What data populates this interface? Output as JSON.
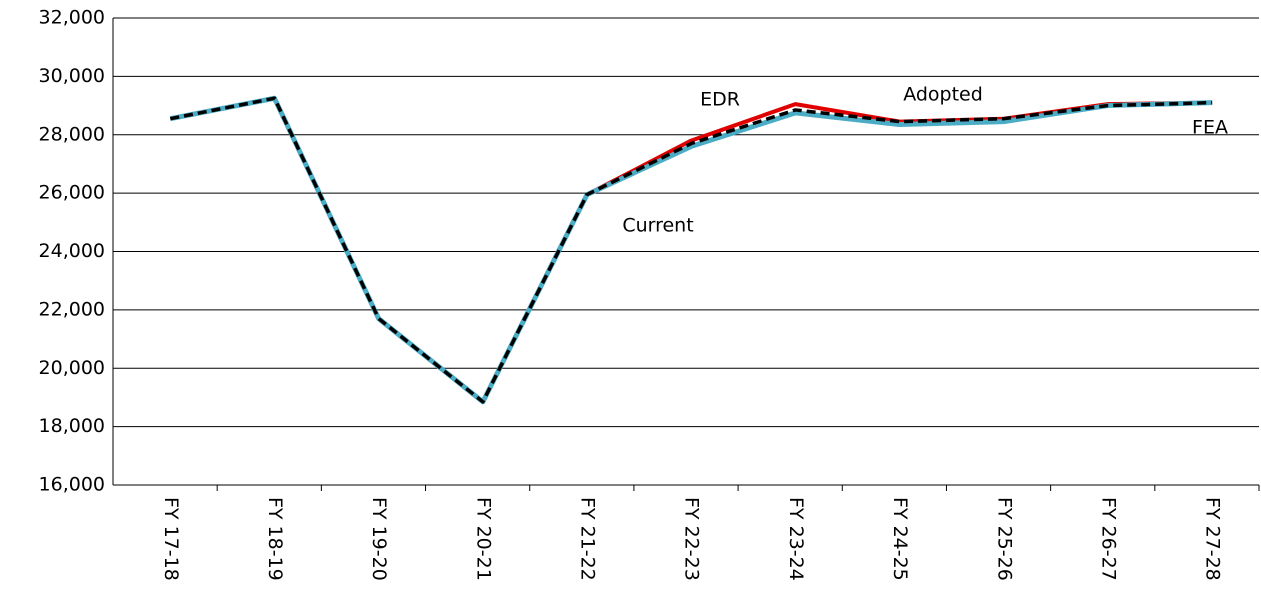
{
  "chart_data": {
    "type": "line",
    "categories": [
      "FY 17-18",
      "FY 18-19",
      "FY 19-20",
      "FY 20-21",
      "FY 21-22",
      "FY 22-23",
      "FY 23-24",
      "FY 24-25",
      "FY 25-26",
      "FY 26-27",
      "FY 27-28"
    ],
    "series": [
      {
        "name": "EDR",
        "color": "#e00000",
        "values": [
          null,
          null,
          null,
          null,
          25950,
          27800,
          29050,
          28450,
          28550,
          29050,
          29100
        ]
      },
      {
        "name": "FEA",
        "color": "#4bacc6",
        "values": [
          null,
          null,
          null,
          null,
          25950,
          27600,
          28750,
          28350,
          28450,
          29000,
          29100
        ]
      },
      {
        "name": "Current",
        "color": "#4bacc6",
        "values": [
          28550,
          29250,
          21700,
          18850,
          25950,
          null,
          null,
          null,
          null,
          null,
          null
        ]
      },
      {
        "name": "Adopted",
        "color": "#000000",
        "values": [
          28550,
          29250,
          21700,
          18850,
          25950,
          27700,
          28850,
          28450,
          28550,
          29000,
          29100
        ]
      }
    ],
    "ylim": [
      16000,
      32000
    ],
    "yticks": [
      {
        "value": 16000,
        "label": "16,000"
      },
      {
        "value": 18000,
        "label": "18,000"
      },
      {
        "value": 20000,
        "label": "20,000"
      },
      {
        "value": 22000,
        "label": "22,000"
      },
      {
        "value": 24000,
        "label": "24,000"
      },
      {
        "value": 26000,
        "label": "26,000"
      },
      {
        "value": 28000,
        "label": "28,000"
      },
      {
        "value": 30000,
        "label": "30,000"
      },
      {
        "value": 32000,
        "label": "32,000"
      }
    ],
    "grid": true
  }
}
